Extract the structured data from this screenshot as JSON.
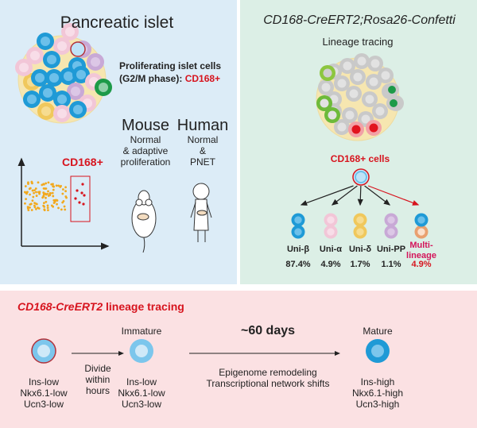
{
  "colors": {
    "left_bg": "#dcecf7",
    "right_bg": "#dcefe6",
    "bottom_bg": "#fbe1e3",
    "accent_red": "#d7141e",
    "beta": "#1f9ad6",
    "alpha": "#f2c6d7",
    "delta": "#f0c85c",
    "pp": "#c8a9d6",
    "multi": "#e9a06f"
  },
  "left": {
    "title": "Pancreatic islet",
    "prolif_line1": "Proliferating islet cells",
    "prolif_line2": "(G2/M phase): ",
    "prolif_marker": "CD168+",
    "scatter_label": "CD168+",
    "mouse": {
      "title": "Mouse",
      "lines": [
        "Normal",
        "& adaptive",
        "proliferation"
      ]
    },
    "human": {
      "title": "Human",
      "lines": [
        "Normal",
        "&",
        "PNET"
      ]
    }
  },
  "right": {
    "title": "CD168-CreERT2;Rosa26-Confetti",
    "subtitle": "Lineage tracing",
    "cells_label": "CD168+ cells",
    "outcomes": [
      {
        "label": "Uni-β",
        "percent": "87.4%"
      },
      {
        "label": "Uni-α",
        "percent": "4.9%"
      },
      {
        "label": "Uni-δ",
        "percent": "1.7%"
      },
      {
        "label": "Uni-PP",
        "percent": "1.1%"
      },
      {
        "label": "Multi-lineage",
        "label_line1": "Multi-",
        "label_line2": "lineage",
        "percent": "4.9%"
      }
    ]
  },
  "bottom": {
    "title_italic": "CD168-CreERT2",
    "title_rest": " lineage tracing",
    "stage1": {
      "lines": [
        "Ins-low",
        "Nkx6.1-low",
        "Ucn3-low"
      ]
    },
    "step1": {
      "lines": [
        "Divide",
        "within",
        "hours"
      ]
    },
    "stage2": {
      "title": "Immature",
      "lines": [
        "Ins-low",
        "Nkx6.1-low",
        "Ucn3-low"
      ]
    },
    "step2": {
      "duration": "~60 days",
      "lines": [
        "Epigenome remodeling",
        "Transcriptional network shifts"
      ]
    },
    "stage3": {
      "title": "Mature",
      "lines": [
        "Ins-high",
        "Nkx6.1-high",
        "Ucn3-high"
      ]
    }
  }
}
